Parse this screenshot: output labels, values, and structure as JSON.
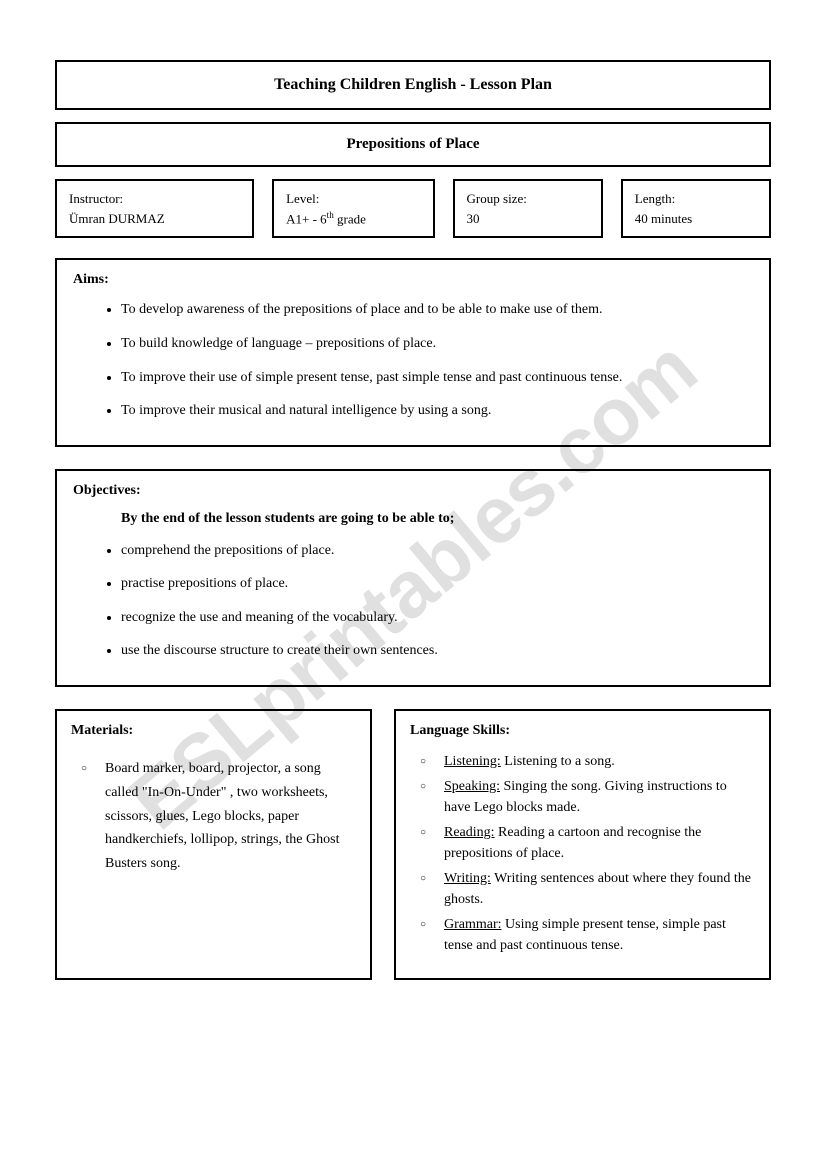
{
  "watermark": "ESLprintables.com",
  "title": "Teaching Children English - Lesson Plan",
  "subtitle": "Prepositions of Place",
  "info": {
    "instructor_label": "Instructor:",
    "instructor_value": "Ümran DURMAZ",
    "level_label": "Level:",
    "level_value_prefix": "A1+ - 6",
    "level_value_suffix": " grade",
    "level_sup": "th",
    "group_label": "Group size:",
    "group_value": "30",
    "length_label": "Length:",
    "length_value": "40 minutes"
  },
  "aims": {
    "heading": "Aims:",
    "items": [
      "To develop awareness of the prepositions of place and to be able to make use of them.",
      "To build knowledge of language – prepositions of place.",
      "To improve their use of simple present tense, past simple tense and past continuous tense.",
      "To improve their musical and natural intelligence by using a song."
    ]
  },
  "objectives": {
    "heading": "Objectives:",
    "intro": "By the end of the lesson students are going to be able to;",
    "items": [
      "comprehend the prepositions of place.",
      "practise prepositions of place.",
      "recognize the use and meaning of the vocabulary.",
      "use the discourse structure to create their own sentences."
    ]
  },
  "materials": {
    "heading": "Materials:",
    "text": "Board marker, board, projector, a song called \"In-On-Under\" , two worksheets, scissors, glues, Lego blocks, paper handkerchiefs, lollipop, strings, the Ghost Busters song."
  },
  "skills": {
    "heading": "Language Skills:",
    "items": [
      {
        "label": "Listening:",
        "text": " Listening to a song."
      },
      {
        "label": "Speaking:",
        "text": " Singing the song. Giving instructions to have Lego blocks made."
      },
      {
        "label": "Reading:",
        "text": " Reading a cartoon and recognise the prepositions of place."
      },
      {
        "label": "Writing:",
        "text": " Writing sentences about where they found the ghosts."
      },
      {
        "label": "Grammar:",
        "text": " Using simple present tense, simple past tense and past continuous tense."
      }
    ]
  }
}
